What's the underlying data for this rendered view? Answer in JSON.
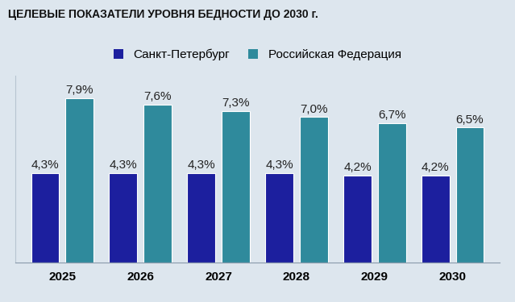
{
  "chart_data": {
    "type": "bar",
    "title": "ЦЕЛЕВЫЕ ПОКАЗАТЕЛИ УРОВНЯ БЕДНОСТИ ДО 2030 г.",
    "categories": [
      "2025",
      "2026",
      "2027",
      "2028",
      "2029",
      "2030"
    ],
    "series": [
      {
        "name": "Санкт-Петербург",
        "color": "#1c1f9e",
        "values": [
          4.3,
          4.3,
          4.3,
          4.3,
          4.2,
          4.2
        ],
        "value_labels": [
          "4,3%",
          "4,3%",
          "4,3%",
          "4,3%",
          "4,2%",
          "4,2%"
        ]
      },
      {
        "name": "Российская Федерация",
        "color": "#2f8a9c",
        "values": [
          7.9,
          7.6,
          7.3,
          7.0,
          6.7,
          6.5
        ],
        "value_labels": [
          "7,9%",
          "7,6%",
          "7,3%",
          "7,0%",
          "6,7%",
          "6,5%"
        ]
      }
    ],
    "ylim": [
      0,
      9
    ],
    "data_labels": true,
    "tick_labels": "x",
    "legend": "upper center",
    "grid": false
  }
}
